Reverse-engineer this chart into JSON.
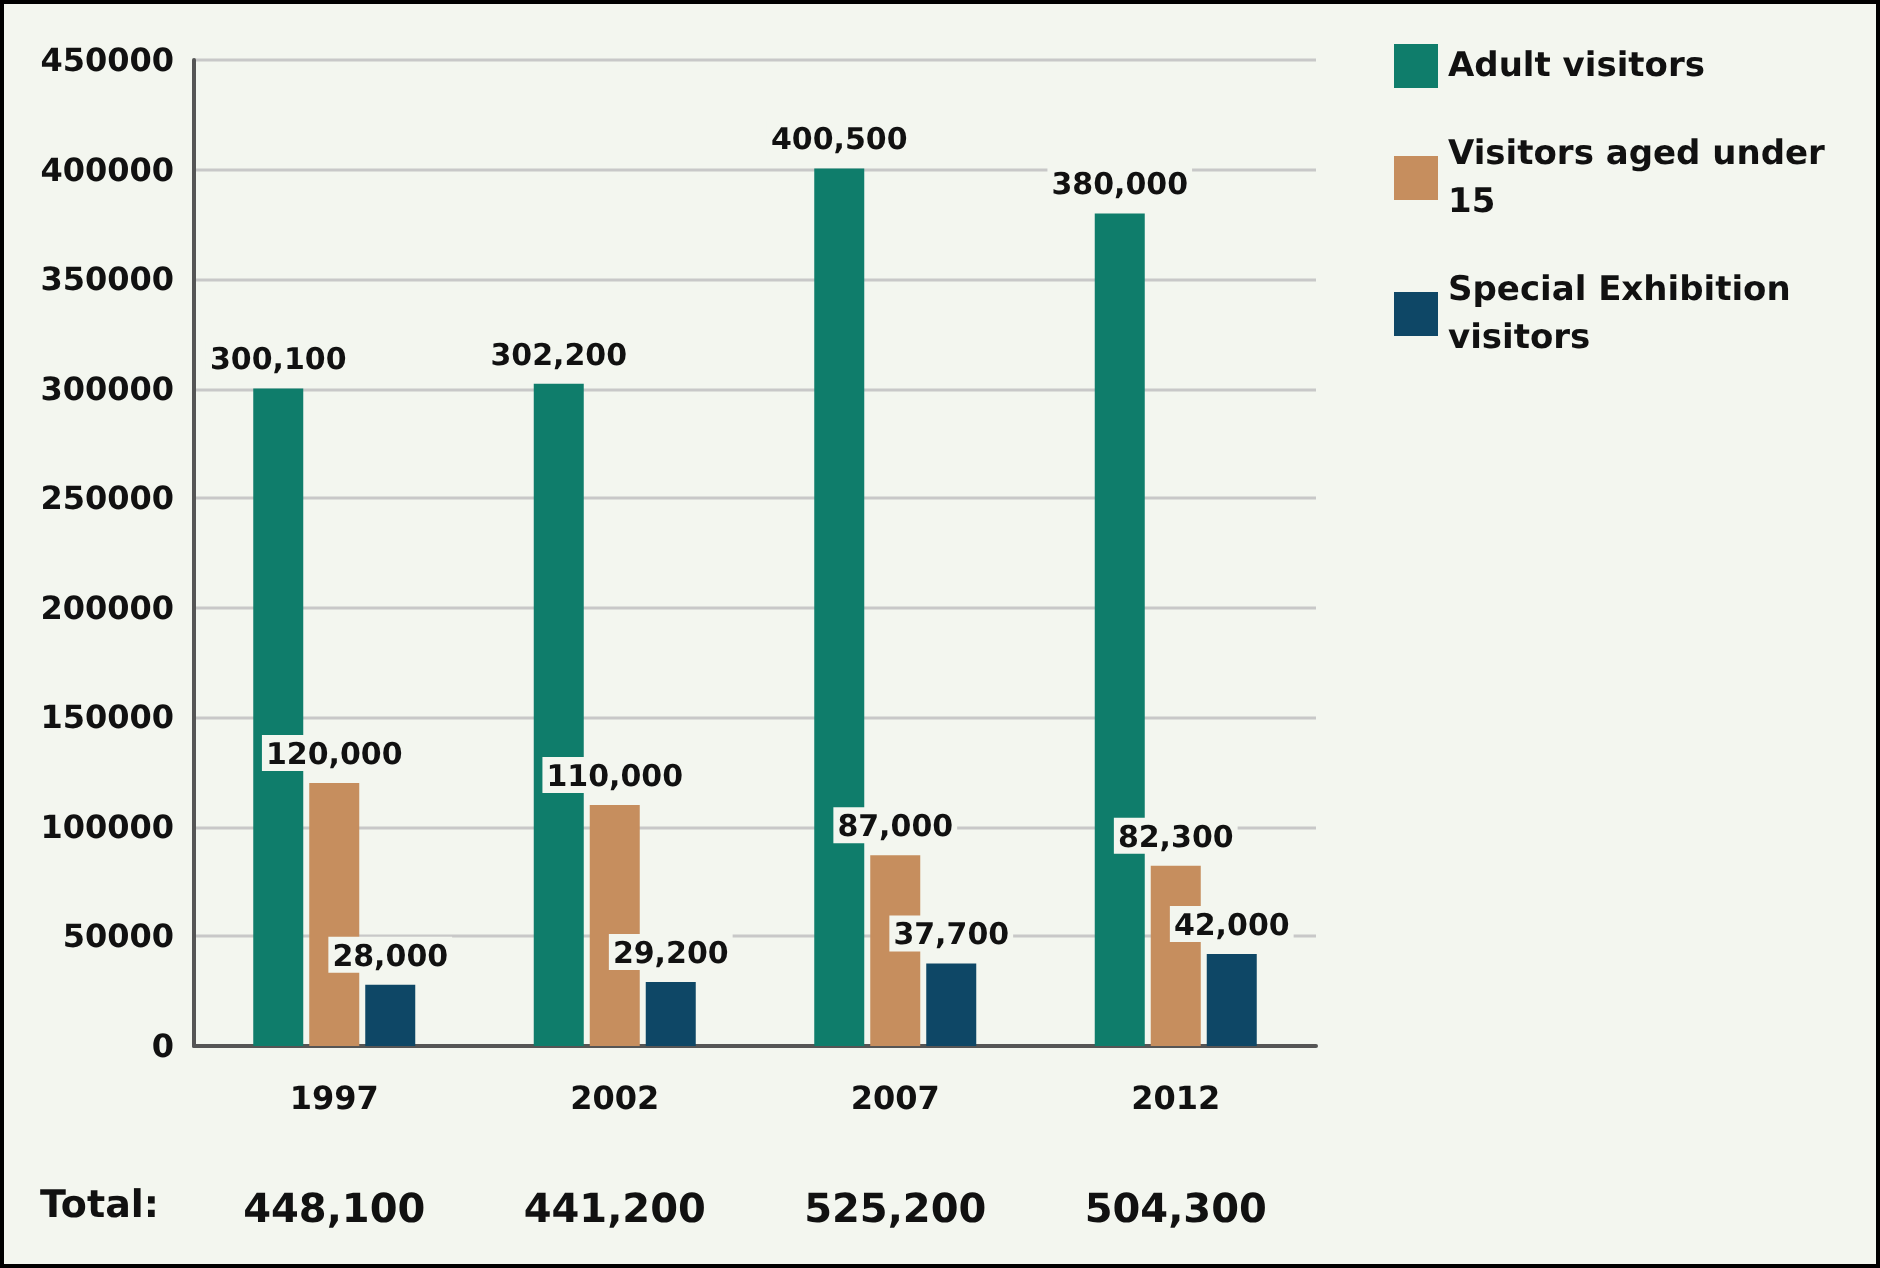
{
  "chart_data": {
    "type": "bar",
    "categories": [
      "1997",
      "2002",
      "2007",
      "2012"
    ],
    "series": [
      {
        "name": "Adult visitors",
        "color": "#0f7d6b",
        "values": [
          300100,
          302200,
          400500,
          380000
        ],
        "value_labels": [
          "300,100",
          "302,200",
          "400,500",
          "380,000"
        ]
      },
      {
        "name": "Visitors aged under 15",
        "color": "#c68e5e",
        "values": [
          120000,
          110000,
          87000,
          82300
        ],
        "value_labels": [
          "120,000",
          "110,000",
          "87,000",
          "82,300"
        ]
      },
      {
        "name": "Special Exhibition visitors",
        "color": "#0e4766",
        "values": [
          28000,
          29200,
          37700,
          42000
        ],
        "value_labels": [
          "28,000",
          "29,200",
          "37,700",
          "42,000"
        ]
      }
    ],
    "ylim": [
      0,
      450000
    ],
    "yticks": [
      0,
      50000,
      100000,
      150000,
      200000,
      250000,
      300000,
      350000,
      400000,
      450000
    ],
    "grid": "y",
    "legend": "top right",
    "annotations": [
      "Total:",
      "448,100",
      "441,200",
      "525,200",
      "504,300"
    ]
  }
}
